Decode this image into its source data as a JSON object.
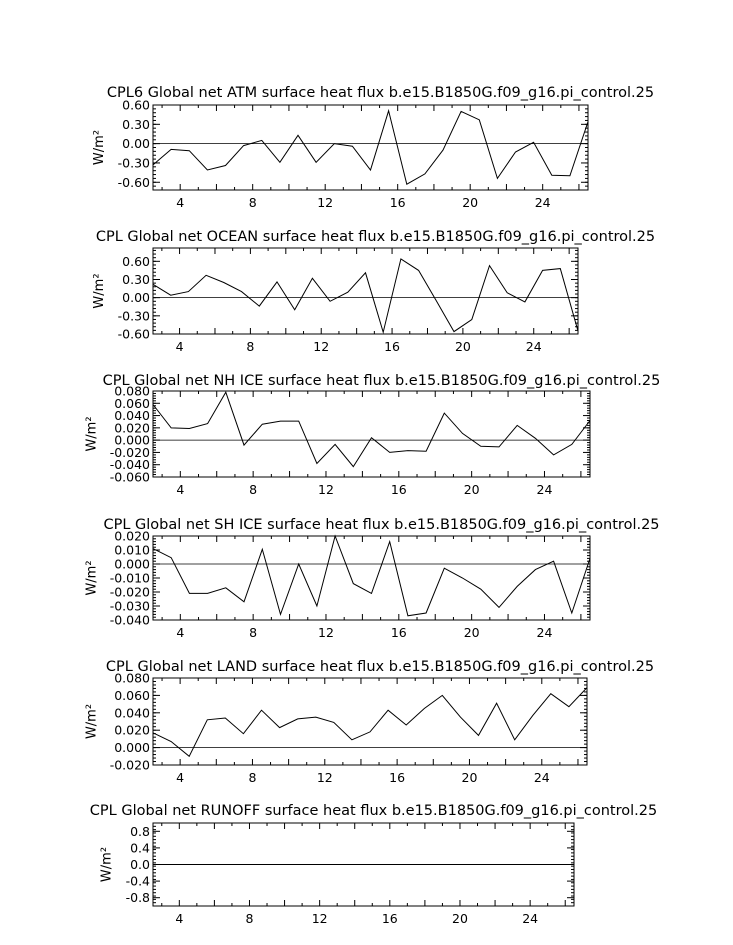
{
  "chart_data": [
    {
      "type": "line",
      "title": "CPL6 Global net ATM surface heat flux b.e15.B1850G.f09_g16.pi_control.25",
      "ylabel": "W/m²",
      "xlim": [
        2.5,
        26.5
      ],
      "ylim": [
        -0.72,
        0.6
      ],
      "xticks": [
        "4",
        "8",
        "12",
        "16",
        "20",
        "24"
      ],
      "yticks": [
        "0.60",
        "0.30",
        "0.00",
        "-0.30",
        "-0.60"
      ],
      "x": [
        2.5,
        3.5,
        4.5,
        5.5,
        6.5,
        7.5,
        8.5,
        9.5,
        10.5,
        11.5,
        12.5,
        13.5,
        14.5,
        15.5,
        16.5,
        17.5,
        18.5,
        19.5,
        20.5,
        21.5,
        22.5,
        23.5,
        24.5,
        25.5,
        26.5
      ],
      "values": [
        -0.33,
        -0.09,
        -0.11,
        -0.41,
        -0.34,
        -0.03,
        0.05,
        -0.29,
        0.13,
        -0.29,
        0.0,
        -0.04,
        -0.41,
        0.51,
        -0.63,
        -0.47,
        -0.1,
        0.5,
        0.37,
        -0.54,
        -0.13,
        0.02,
        -0.49,
        -0.5,
        0.34
      ]
    },
    {
      "type": "line",
      "title": "CPL Global net OCEAN surface heat flux b.e15.B1850G.f09_g16.pi_control.25",
      "ylabel": "W/m²",
      "xlim": [
        2.5,
        26.5
      ],
      "ylim": [
        -0.6,
        0.82
      ],
      "xticks": [
        "4",
        "8",
        "12",
        "16",
        "20",
        "24"
      ],
      "yticks": [
        "0.60",
        "0.30",
        "0.00",
        "-0.30",
        "-0.60"
      ],
      "x": [
        2.5,
        3.5,
        4.5,
        5.5,
        6.5,
        7.5,
        8.5,
        9.5,
        10.5,
        11.5,
        12.5,
        13.5,
        14.5,
        15.5,
        16.5,
        17.5,
        18.5,
        19.5,
        20.5,
        21.5,
        22.5,
        23.5,
        24.5,
        25.5,
        26.5
      ],
      "values": [
        0.22,
        0.04,
        0.1,
        0.37,
        0.25,
        0.1,
        -0.14,
        0.26,
        -0.2,
        0.32,
        -0.06,
        0.09,
        0.41,
        -0.57,
        0.64,
        0.45,
        -0.05,
        -0.56,
        -0.36,
        0.53,
        0.08,
        -0.07,
        0.45,
        0.48,
        -0.55
      ]
    },
    {
      "type": "line",
      "title": "CPL Global net NH ICE surface heat flux b.e15.B1850G.f09_g16.pi_control.25",
      "ylabel": "W/m²",
      "xlim": [
        2.5,
        26.5
      ],
      "ylim": [
        -0.06,
        0.08
      ],
      "xticks": [
        "4",
        "8",
        "12",
        "16",
        "20",
        "24"
      ],
      "yticks": [
        "0.080",
        "0.060",
        "0.040",
        "0.020",
        "0.000",
        "-0.020",
        "-0.040",
        "-0.060"
      ],
      "x": [
        2.5,
        3.5,
        4.5,
        5.5,
        6.5,
        7.5,
        8.5,
        9.5,
        10.5,
        11.5,
        12.5,
        13.5,
        14.5,
        15.5,
        16.5,
        17.5,
        18.5,
        19.5,
        20.5,
        21.5,
        22.5,
        23.5,
        24.5,
        25.5,
        26.5
      ],
      "values": [
        0.058,
        0.02,
        0.019,
        0.027,
        0.078,
        -0.008,
        0.026,
        0.031,
        0.031,
        -0.038,
        -0.007,
        -0.043,
        0.004,
        -0.02,
        -0.017,
        -0.018,
        0.044,
        0.011,
        -0.01,
        -0.011,
        0.024,
        0.003,
        -0.024,
        -0.007,
        0.032
      ]
    },
    {
      "type": "line",
      "title": "CPL Global net SH ICE surface heat flux b.e15.B1850G.f09_g16.pi_control.25",
      "ylabel": "W/m²",
      "xlim": [
        2.5,
        26.5
      ],
      "ylim": [
        -0.04,
        0.02
      ],
      "xticks": [
        "4",
        "8",
        "12",
        "16",
        "20",
        "24"
      ],
      "yticks": [
        "0.020",
        "0.010",
        "0.000",
        "-0.010",
        "-0.020",
        "-0.030",
        "-0.040"
      ],
      "x": [
        2.5,
        3.5,
        4.5,
        5.5,
        6.5,
        7.5,
        8.5,
        9.5,
        10.5,
        11.5,
        12.5,
        13.5,
        14.5,
        15.5,
        16.5,
        17.5,
        18.5,
        19.5,
        20.5,
        21.5,
        22.5,
        23.5,
        24.5,
        25.5,
        26.5
      ],
      "values": [
        0.011,
        0.0045,
        -0.021,
        -0.021,
        -0.017,
        -0.027,
        0.0105,
        -0.036,
        0.0,
        -0.03,
        0.02,
        -0.014,
        -0.021,
        0.016,
        -0.037,
        -0.035,
        -0.003,
        -0.01,
        -0.018,
        -0.031,
        -0.016,
        -0.004,
        0.002,
        -0.035,
        0.004
      ]
    },
    {
      "type": "line",
      "title": "CPL Global net LAND surface heat flux b.e15.B1850G.f09_g16.pi_control.25",
      "ylabel": "W/m²",
      "xlim": [
        2.5,
        26.5
      ],
      "ylim": [
        -0.02,
        0.08
      ],
      "xticks": [
        "4",
        "8",
        "12",
        "16",
        "20",
        "24"
      ],
      "yticks": [
        "0.080",
        "0.060",
        "0.040",
        "0.020",
        "0.000",
        "-0.020"
      ],
      "x": [
        2.5,
        3.5,
        4.5,
        5.5,
        6.5,
        7.5,
        8.5,
        9.5,
        10.5,
        11.5,
        12.5,
        13.5,
        14.5,
        15.5,
        16.5,
        17.5,
        18.5,
        19.5,
        20.5,
        21.5,
        22.5,
        23.5,
        24.5,
        25.5,
        26.5
      ],
      "values": [
        0.017,
        0.007,
        -0.01,
        0.032,
        0.034,
        0.016,
        0.043,
        0.023,
        0.033,
        0.035,
        0.029,
        0.009,
        0.018,
        0.043,
        0.026,
        0.045,
        0.06,
        0.035,
        0.014,
        0.051,
        0.009,
        0.037,
        0.062,
        0.047,
        0.069
      ]
    },
    {
      "type": "line",
      "title": "CPL Global net RUNOFF surface heat flux b.e15.B1850G.f09_g16.pi_control.25",
      "ylabel": "W/m²",
      "xlim": [
        2.5,
        26.5
      ],
      "ylim": [
        -1.0,
        1.0
      ],
      "xticks": [
        "4",
        "8",
        "12",
        "16",
        "20",
        "24"
      ],
      "yticks": [
        "0.8",
        "0.4",
        "0.0",
        "-0.4",
        "-0.8"
      ],
      "x": [
        2.5,
        3.5,
        4.5,
        5.5,
        6.5,
        7.5,
        8.5,
        9.5,
        10.5,
        11.5,
        12.5,
        13.5,
        14.5,
        15.5,
        16.5,
        17.5,
        18.5,
        19.5,
        20.5,
        21.5,
        22.5,
        23.5,
        24.5,
        25.5,
        26.5
      ],
      "values": [
        0,
        0,
        0,
        0,
        0,
        0,
        0,
        0,
        0,
        0,
        0,
        0,
        0,
        0,
        0,
        0,
        0,
        0,
        0,
        0,
        0,
        0,
        0,
        0,
        0
      ]
    }
  ]
}
